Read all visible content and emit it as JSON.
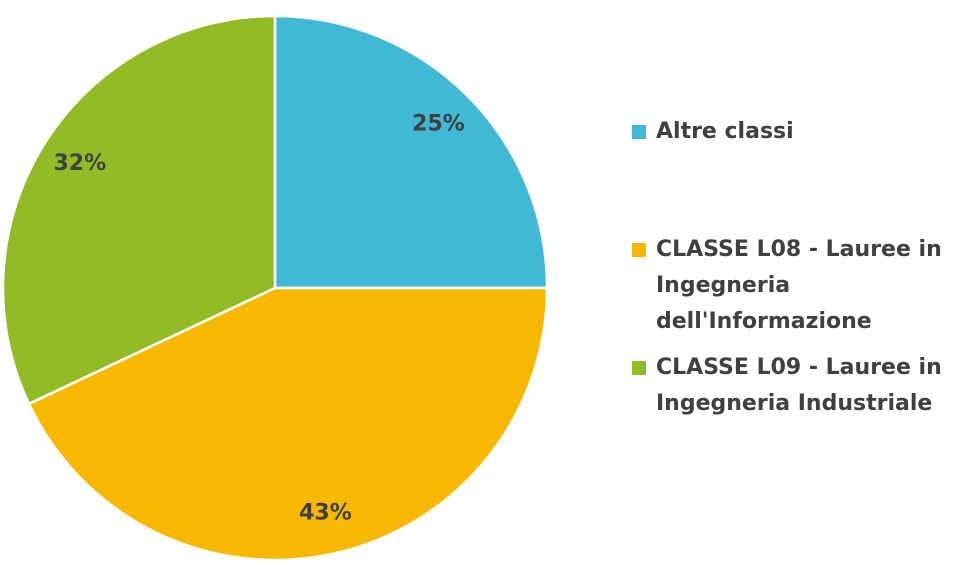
{
  "chart_data": {
    "type": "pie",
    "categories": [
      "Altre classi",
      "CLASSE L08 - Lauree in Ingegneria dell'Informazione",
      "CLASSE L09 - Lauree in Ingegneria Industriale"
    ],
    "values": [
      25,
      43,
      32
    ],
    "value_labels": [
      "25%",
      "43%",
      "32%"
    ],
    "colors": [
      "#41b8d5",
      "#f9b800",
      "#93bb26"
    ],
    "legend": "right"
  }
}
